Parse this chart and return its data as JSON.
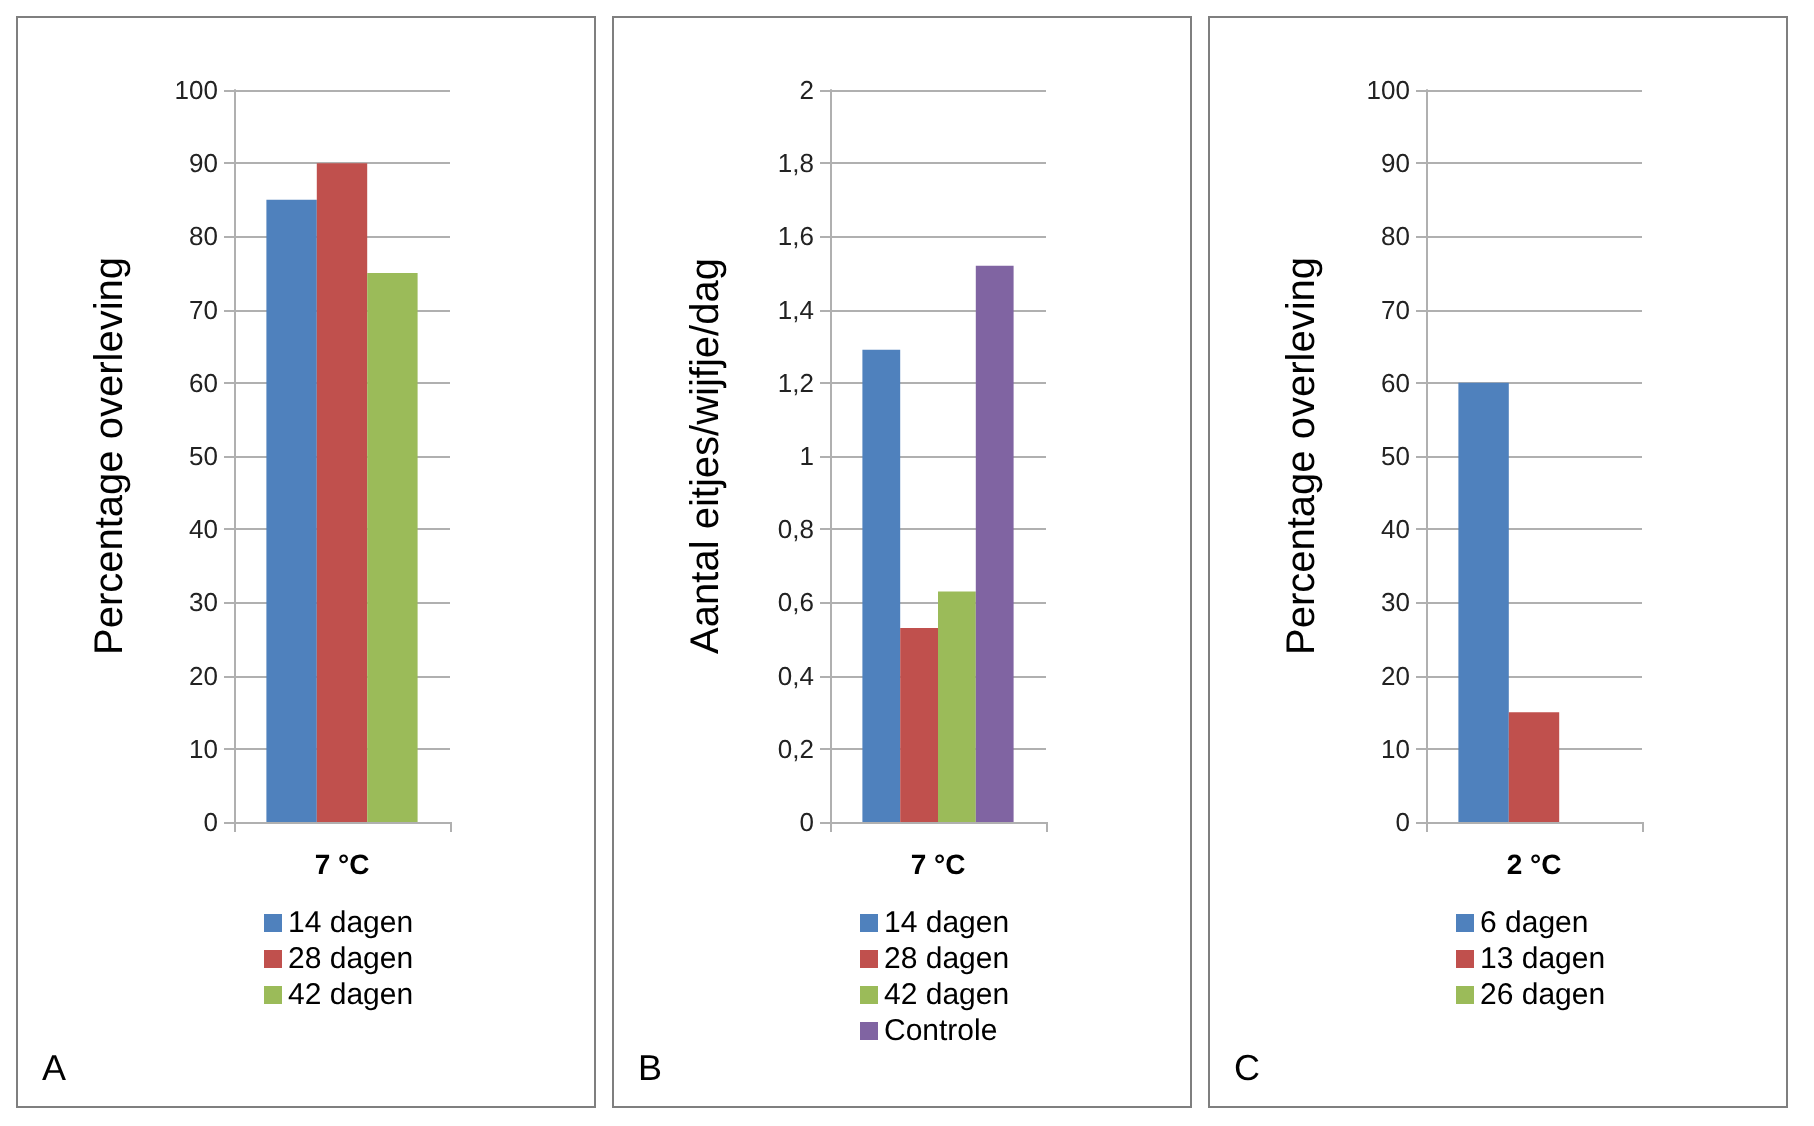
{
  "chart_data": [
    {
      "type": "bar",
      "ylabel": "Percentage overleving",
      "categories": [
        "7 °C"
      ],
      "series": [
        {
          "name": "14 dagen",
          "color": "#4f81bd",
          "values": [
            85
          ]
        },
        {
          "name": "28 dagen",
          "color": "#c0504d",
          "values": [
            90
          ]
        },
        {
          "name": "42 dagen",
          "color": "#9bbb59",
          "values": [
            75
          ]
        }
      ],
      "ylim": [
        0,
        100
      ],
      "yticks": [
        0,
        10,
        20,
        30,
        40,
        50,
        60,
        70,
        80,
        90,
        100
      ],
      "grid": "y",
      "legend": "bottom",
      "annotations": [
        "A"
      ]
    },
    {
      "type": "bar",
      "ylabel": "Aantal eitjes/wijfje/dag",
      "categories": [
        "7 °C"
      ],
      "series": [
        {
          "name": "14 dagen",
          "color": "#4f81bd",
          "values": [
            1.29
          ]
        },
        {
          "name": "28 dagen",
          "color": "#c0504d",
          "values": [
            0.53
          ]
        },
        {
          "name": "42 dagen",
          "color": "#9bbb59",
          "values": [
            0.63
          ]
        },
        {
          "name": "Controle",
          "color": "#8064a2",
          "values": [
            1.52
          ]
        }
      ],
      "ylim": [
        0,
        2
      ],
      "yticks": [
        0,
        {
          "value": 0.2,
          "label": "0,2"
        },
        {
          "value": 0.4,
          "label": "0,4"
        },
        {
          "value": 0.6,
          "label": "0,6"
        },
        {
          "value": 0.8,
          "label": "0,8"
        },
        1,
        {
          "value": 1.2,
          "label": "1,2"
        },
        {
          "value": 1.4,
          "label": "1,4"
        },
        {
          "value": 1.6,
          "label": "1,6"
        },
        {
          "value": 1.8,
          "label": "1,8"
        },
        2
      ],
      "grid": "y",
      "legend": "bottom",
      "annotations": [
        "B"
      ]
    },
    {
      "type": "bar",
      "ylabel": "Percentage overleving",
      "categories": [
        "2 °C"
      ],
      "series": [
        {
          "name": "6 dagen",
          "color": "#4f81bd",
          "values": [
            60
          ]
        },
        {
          "name": "13 dagen",
          "color": "#c0504d",
          "values": [
            15
          ]
        },
        {
          "name": "26 dagen",
          "color": "#9bbb59",
          "values": [
            0
          ]
        }
      ],
      "ylim": [
        0,
        100
      ],
      "yticks": [
        0,
        10,
        20,
        30,
        40,
        50,
        60,
        70,
        80,
        90,
        100
      ],
      "grid": "y",
      "legend": "bottom",
      "annotations": [
        "C"
      ]
    }
  ]
}
